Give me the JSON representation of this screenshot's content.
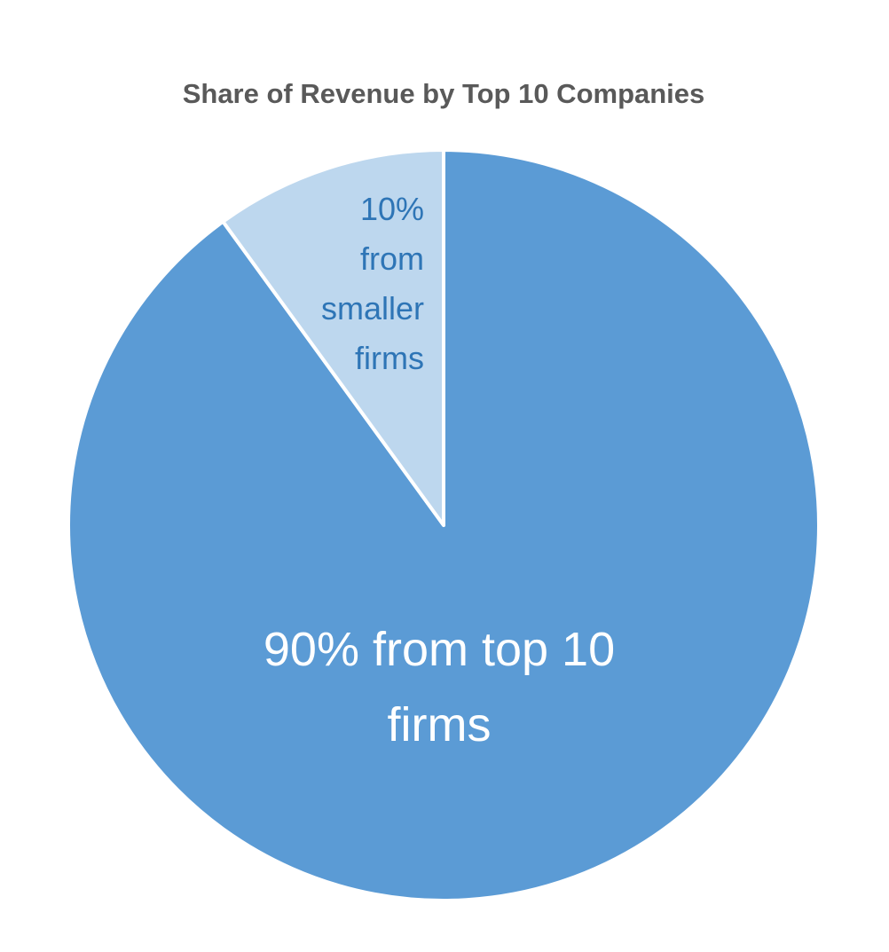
{
  "chart_data": {
    "type": "pie",
    "title": "Share of Revenue by Top 10 Companies",
    "categories": [
      "Top 10 firms",
      "Smaller firms"
    ],
    "values": [
      90,
      10
    ],
    "value_labels": [
      "90% from top 10 firms",
      "10% from smaller firms"
    ],
    "colors": [
      "#5b9bd5",
      "#bdd7ee"
    ]
  }
}
